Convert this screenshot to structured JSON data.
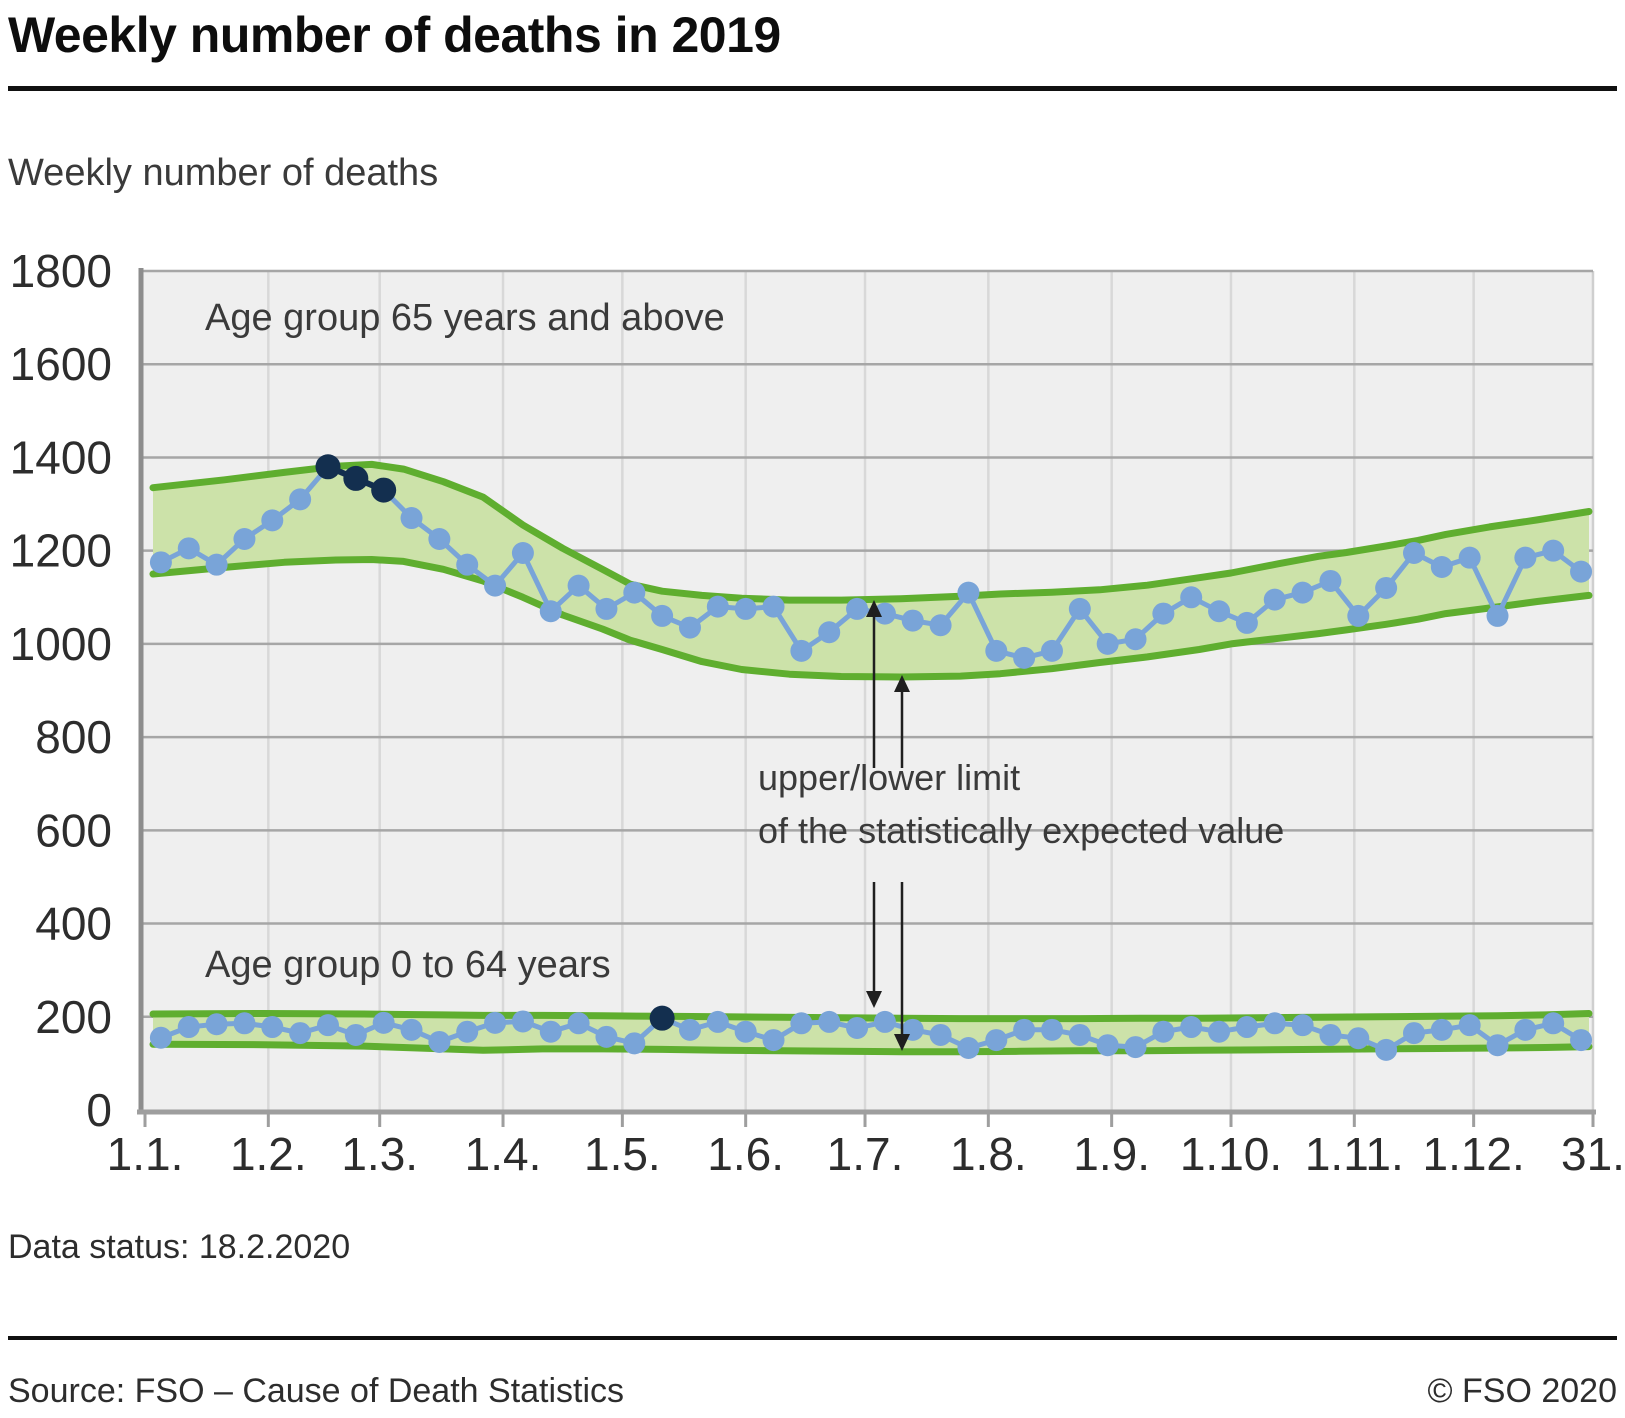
{
  "page": {
    "title": "Weekly number of deaths in 2019",
    "axis_title": "Weekly number of deaths",
    "data_status": "Data status: 18.2.2020",
    "source": "Source: FSO – Cause of Death Statistics",
    "copyright": "© FSO 2020"
  },
  "colors": {
    "plot_bg": "#efefef",
    "grid_h": "#a6a6a6",
    "grid_v": "#d8d8d8",
    "grid_v_end": "#cfcfcf",
    "axis": "#9e9e9e",
    "spine": "#8d8d8d",
    "band_fill": "#cce2a9",
    "band_line": "#5fae2f",
    "series_blue": "#79a4d8",
    "highlight_navy": "#132f4f",
    "tick_text": "#2d2d2d",
    "label_text": "#3a3a3a",
    "arrow": "#1f1f1f"
  },
  "chart_data": {
    "type": "line",
    "title": "Weekly number of deaths in 2019",
    "ylabel": "Weekly number of deaths",
    "xlabel": "",
    "ylim": [
      0,
      1800
    ],
    "ytick_step": 200,
    "grid": true,
    "x_axis_days_span": 364,
    "xtick_days": [
      0,
      31,
      59,
      90,
      120,
      151,
      181,
      212,
      243,
      273,
      304,
      334,
      364
    ],
    "xtick_labels": [
      "1.1.",
      "1.2.",
      "1.3.",
      "1.4.",
      "1.5.",
      "1.6.",
      "1.7.",
      "1.8.",
      "1.9.",
      "1.10.",
      "1.11.",
      "1.12.",
      "31."
    ],
    "weeks": 52,
    "first_point_day": 4,
    "day_step": 7,
    "series": [
      {
        "name": "Age group 65 years and above",
        "values": [
          1175,
          1205,
          1170,
          1225,
          1265,
          1310,
          1380,
          1355,
          1330,
          1270,
          1225,
          1170,
          1125,
          1195,
          1070,
          1125,
          1075,
          1110,
          1060,
          1035,
          1080,
          1075,
          1080,
          985,
          1025,
          1075,
          1065,
          1050,
          1040,
          1110,
          985,
          970,
          985,
          1075,
          1000,
          1010,
          1065,
          1100,
          1070,
          1045,
          1095,
          1110,
          1135,
          1060,
          1120,
          1195,
          1165,
          1185,
          1060,
          1185,
          1200,
          1155
        ],
        "highlight_indices": [
          6,
          7,
          8
        ]
      },
      {
        "name": "Age group 0 to 64 years",
        "values": [
          155,
          178,
          184,
          186,
          178,
          165,
          182,
          161,
          187,
          172,
          146,
          168,
          187,
          190,
          168,
          186,
          157,
          143,
          197,
          172,
          189,
          168,
          150,
          186,
          189,
          176,
          189,
          172,
          161,
          133,
          150,
          172,
          172,
          161,
          139,
          135,
          168,
          178,
          168,
          178,
          186,
          182,
          161,
          154,
          129,
          165,
          172,
          182,
          139,
          172,
          186,
          150
        ],
        "highlight_indices": [
          18
        ]
      }
    ],
    "bands": [
      {
        "series": "Age group 65 years and above",
        "points": [
          [
            2,
            1335,
            1150
          ],
          [
            20,
            1352,
            1164
          ],
          [
            35,
            1368,
            1175
          ],
          [
            48,
            1381,
            1180
          ],
          [
            57,
            1385,
            1181
          ],
          [
            65,
            1375,
            1177
          ],
          [
            75,
            1348,
            1160
          ],
          [
            85,
            1315,
            1135
          ],
          [
            95,
            1255,
            1100
          ],
          [
            105,
            1205,
            1062
          ],
          [
            115,
            1160,
            1032
          ],
          [
            122,
            1128,
            1008
          ],
          [
            130,
            1113,
            988
          ],
          [
            140,
            1104,
            962
          ],
          [
            150,
            1098,
            945
          ],
          [
            162,
            1094,
            935
          ],
          [
            175,
            1094,
            930
          ],
          [
            190,
            1097,
            929
          ],
          [
            205,
            1102,
            931
          ],
          [
            215,
            1107,
            936
          ],
          [
            228,
            1111,
            947
          ],
          [
            240,
            1116,
            960
          ],
          [
            252,
            1126,
            972
          ],
          [
            265,
            1142,
            988
          ],
          [
            273,
            1152,
            1000
          ],
          [
            285,
            1172,
            1012
          ],
          [
            295,
            1188,
            1022
          ],
          [
            302,
            1196,
            1030
          ],
          [
            312,
            1210,
            1042
          ],
          [
            320,
            1222,
            1053
          ],
          [
            327,
            1235,
            1065
          ],
          [
            338,
            1251,
            1077
          ],
          [
            350,
            1266,
            1091
          ],
          [
            363,
            1284,
            1104
          ]
        ]
      },
      {
        "series": "Age group 0 to 64 years",
        "points": [
          [
            2,
            206,
            141
          ],
          [
            30,
            207,
            140
          ],
          [
            55,
            206,
            137
          ],
          [
            75,
            204,
            131
          ],
          [
            85,
            203,
            128
          ],
          [
            100,
            203,
            131
          ],
          [
            115,
            202,
            131
          ],
          [
            130,
            201,
            130
          ],
          [
            145,
            200,
            128
          ],
          [
            160,
            199,
            127
          ],
          [
            175,
            198,
            126
          ],
          [
            190,
            197,
            125
          ],
          [
            205,
            196,
            125
          ],
          [
            220,
            196,
            126
          ],
          [
            235,
            196,
            127
          ],
          [
            250,
            197,
            127
          ],
          [
            265,
            197,
            128
          ],
          [
            280,
            198,
            129
          ],
          [
            295,
            199,
            130
          ],
          [
            310,
            200,
            131
          ],
          [
            325,
            201,
            132
          ],
          [
            340,
            202,
            133
          ],
          [
            352,
            204,
            134
          ],
          [
            363,
            207,
            136
          ]
        ]
      }
    ],
    "annotation": {
      "line1": "upper/lower limit",
      "line2": "of the statistically expected value"
    },
    "legend_position": "none"
  }
}
